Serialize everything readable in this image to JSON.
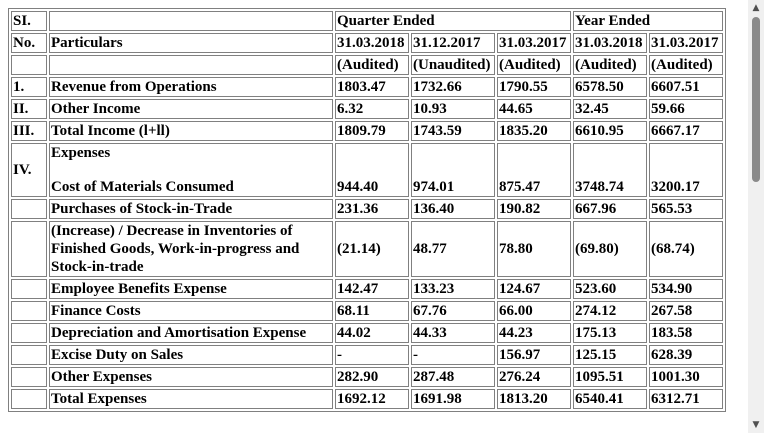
{
  "table": {
    "header": {
      "sl_top": "SI.",
      "sl_bottom": "No.",
      "particulars": "Particulars",
      "quarter_ended": "Quarter Ended",
      "year_ended": "Year Ended",
      "dates": [
        "31.03.2018",
        "31.12.2017",
        "31.03.2017",
        "31.03.2018",
        "31.03.2017"
      ],
      "audit": [
        "(Audited)",
        "(Unaudited)",
        "(Audited)",
        "(Audited)",
        "(Audited)"
      ]
    },
    "rows": [
      {
        "sl": "1.",
        "label": "Revenue from Operations",
        "values": [
          "1803.47",
          "1732.66",
          "1790.55",
          "6578.50",
          "6607.51"
        ]
      },
      {
        "sl": "II.",
        "label": "Other Income",
        "values": [
          "6.32",
          "10.93",
          "44.65",
          "32.45",
          "59.66"
        ]
      },
      {
        "sl": "III.",
        "label": "Total Income (l+ll)",
        "values": [
          "1809.79",
          "1743.59",
          "1835.20",
          "6610.95",
          "6667.17"
        ]
      },
      {
        "sl": "IV.",
        "heading": "Expenses",
        "label": "Cost of Materials Consumed",
        "values": [
          "944.40",
          "974.01",
          "875.47",
          "3748.74",
          "3200.17"
        ]
      },
      {
        "sl": "",
        "label": "Purchases of Stock-in-Trade",
        "values": [
          "231.36",
          "136.40",
          "190.82",
          "667.96",
          "565.53"
        ]
      },
      {
        "sl": "",
        "label": "(Increase) / Decrease in Inventories of Finished Goods, Work-in-progress and Stock-in-trade",
        "values": [
          "(21.14)",
          "48.77",
          "78.80",
          "(69.80)",
          "(68.74)"
        ]
      },
      {
        "sl": "",
        "label": "Employee Benefits Expense",
        "values": [
          "142.47",
          "133.23",
          "124.67",
          "523.60",
          "534.90"
        ]
      },
      {
        "sl": "",
        "label": "Finance Costs",
        "values": [
          "68.11",
          "67.76",
          "66.00",
          "274.12",
          "267.58"
        ]
      },
      {
        "sl": "",
        "label": "Depreciation and Amortisation Expense",
        "values": [
          "44.02",
          "44.33",
          "44.23",
          "175.13",
          "183.58"
        ]
      },
      {
        "sl": "",
        "label": "Excise Duty on Sales",
        "values": [
          "-",
          "-",
          "156.97",
          "125.15",
          "628.39"
        ]
      },
      {
        "sl": "",
        "label": "Other Expenses",
        "values": [
          "282.90",
          "287.48",
          "276.24",
          "1095.51",
          "1001.30"
        ]
      },
      {
        "sl": "",
        "label": "Total Expenses",
        "values": [
          "1692.12",
          "1691.98",
          "1813.20",
          "6540.41",
          "6312.71"
        ]
      }
    ]
  },
  "scrollbar": {
    "up_icon": "triangle-up",
    "down_icon": "triangle-down"
  }
}
